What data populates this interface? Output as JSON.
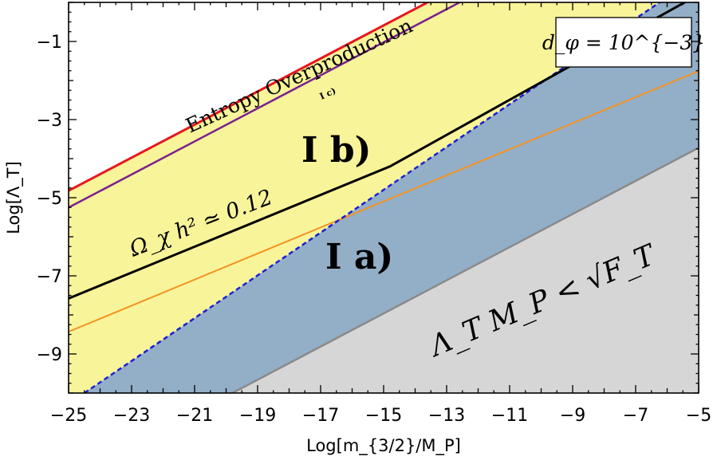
{
  "chart_data": {
    "type": "area",
    "xlabel": "Log[m_{3/2}/M_P]",
    "ylabel": "Log[Λ_T]",
    "xlim": [
      -25,
      -5
    ],
    "ylim": [
      -10,
      0
    ],
    "x_ticks": [
      -25,
      -23,
      -21,
      -19,
      -17,
      -15,
      -13,
      -11,
      -9,
      -7,
      -5
    ],
    "y_ticks": [
      -1,
      -3,
      -5,
      -7,
      -9
    ],
    "x_tick_labels": [
      "−25",
      "−23",
      "−21",
      "−19",
      "−17",
      "−15",
      "−13",
      "−11",
      "−9",
      "−7",
      "−5"
    ],
    "y_tick_labels": [
      "−1",
      "−3",
      "−5",
      "−7",
      "−9"
    ],
    "grid": false,
    "param_box": "d_φ = 10^{−3}",
    "colors": {
      "yellow_region": "#f8f49a",
      "blue_region": "#93aec7",
      "gray_region": "#d6d6d6",
      "entropy_line": "#e8161e",
      "ic_line": "#7a1f8e",
      "relic_line": "#000000",
      "orange_line": "#f39322",
      "dashed_line": "#1a1fd6",
      "gray_line": "#8a8a8a"
    },
    "series": [
      {
        "key": "entropy",
        "name": "Entropy Overproduction",
        "x": [
          -25,
          -5
        ],
        "y": [
          -4.82,
          3.64
        ]
      },
      {
        "key": "ic",
        "name": "I c)",
        "x": [
          -25,
          -5
        ],
        "y": [
          -5.25,
          3.21
        ]
      },
      {
        "key": "relic",
        "name": "Ω_χ h² ≃ 0.12",
        "x": [
          -25,
          -14.8,
          -5
        ],
        "y": [
          -7.58,
          -4.2,
          0.2
        ]
      },
      {
        "key": "orange",
        "x": [
          -25,
          -5
        ],
        "y": [
          -8.43,
          -1.76
        ]
      },
      {
        "key": "dashed",
        "x": [
          -24.5,
          -6.24
        ],
        "y": [
          -10,
          0
        ]
      },
      {
        "key": "gray",
        "x": [
          -19.8,
          -5
        ],
        "y": [
          -10,
          -3.72
        ]
      }
    ],
    "regions": [
      {
        "name": "I a)"
      },
      {
        "name": "I b)"
      },
      {
        "name": "I c)"
      }
    ],
    "annotations": {
      "entropy_label": "Entropy Overproduction",
      "ic_label": "I c)",
      "ib_label": "I b)",
      "ia_label": "I a)",
      "relic_label": "Ω_χ h² ≃ 0.12",
      "bound_label": "Λ_T M_P < √F_T"
    }
  }
}
